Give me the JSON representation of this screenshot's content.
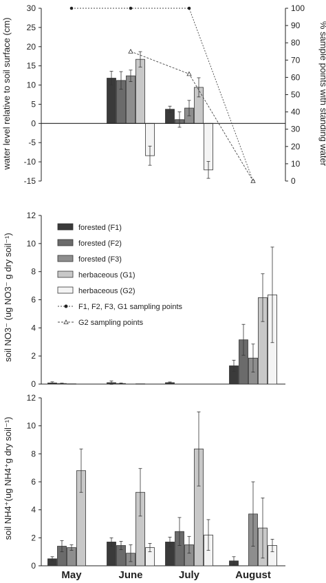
{
  "colors": {
    "F1": "#3a3a3a",
    "F2": "#6b6b6b",
    "F3": "#8e8e8e",
    "G1": "#c8c8c8",
    "G2": "#f4f4f4",
    "stroke": "#333333"
  },
  "months": [
    "May",
    "June",
    "July",
    "August"
  ],
  "chart_data": [
    {
      "type": "bar",
      "ylabel_left": "water level relative to soil surface (cm)",
      "ylabel_right": "% sample points with standing water",
      "ylim": [
        -15,
        30
      ],
      "yticks": [
        "-15",
        "-10",
        "-5",
        "0",
        "5",
        "10",
        "15",
        "20",
        "25",
        "30"
      ],
      "y2lim": [
        0,
        100
      ],
      "y2ticks": [
        "0",
        "10",
        "20",
        "30",
        "40",
        "50",
        "60",
        "70",
        "80",
        "90",
        "100"
      ],
      "categories": [
        "June",
        "July"
      ],
      "series": [
        {
          "key": "F1",
          "values": [
            11.8,
            3.7
          ],
          "errors": [
            1.8,
            0.8
          ]
        },
        {
          "key": "F2",
          "values": [
            11.2,
            1.0
          ],
          "errors": [
            2.3,
            2.0
          ]
        },
        {
          "key": "F3",
          "values": [
            12.4,
            4.0
          ],
          "errors": [
            1.5,
            2.0
          ]
        },
        {
          "key": "G1",
          "values": [
            16.7,
            9.4
          ],
          "errors": [
            2.0,
            2.5
          ]
        },
        {
          "key": "G2",
          "values": [
            -8.4,
            -12.1
          ],
          "errors": [
            2.5,
            2.2
          ]
        }
      ],
      "lines": [
        {
          "key": "F1, F2, F3, G1 sampling points",
          "x": [
            "May",
            "June",
            "July",
            "August"
          ],
          "values": [
            100,
            100,
            100,
            0
          ]
        },
        {
          "key": "G2 sampling points",
          "x": [
            "June",
            "July",
            "August"
          ],
          "values": [
            75,
            62,
            0
          ]
        }
      ]
    },
    {
      "type": "bar",
      "ylabel": "soil NO3⁻ (ug NO3⁻ g dry soil⁻¹)",
      "ylim": [
        0,
        12
      ],
      "yticks": [
        "0",
        "2",
        "4",
        "6",
        "8",
        "10",
        "12"
      ],
      "categories": [
        "May",
        "June",
        "July",
        "August"
      ],
      "series": [
        {
          "key": "F1",
          "values": [
            0.08,
            0.1,
            0.1,
            1.3
          ],
          "errors": [
            0.08,
            0.12,
            0.05,
            0.4
          ]
        },
        {
          "key": "F2",
          "values": [
            0.04,
            0.04,
            0.0,
            3.15
          ],
          "errors": [
            0.03,
            0.04,
            0.0,
            1.1
          ]
        },
        {
          "key": "F3",
          "values": [
            0.02,
            0.0,
            0.0,
            1.85
          ],
          "errors": [
            0.0,
            0.0,
            0.0,
            1.0
          ]
        },
        {
          "key": "G1",
          "values": [
            0.0,
            0.02,
            0.0,
            6.15
          ],
          "errors": [
            0.0,
            0.0,
            0.0,
            1.7
          ]
        },
        {
          "key": "G2",
          "values": [
            0.0,
            0.0,
            0.0,
            6.35
          ],
          "errors": [
            0.0,
            0.0,
            0.0,
            3.4
          ]
        }
      ]
    },
    {
      "type": "bar",
      "ylabel": "soil NH4⁺(ug NH4⁺g dry soil⁻¹)",
      "ylim": [
        0,
        12
      ],
      "yticks": [
        "0",
        "2",
        "4",
        "6",
        "8",
        "10",
        "12"
      ],
      "categories": [
        "May",
        "June",
        "July",
        "August"
      ],
      "series": [
        {
          "key": "F1",
          "values": [
            0.5,
            1.7,
            1.7,
            0.35
          ],
          "errors": [
            0.15,
            0.3,
            0.35,
            0.3
          ]
        },
        {
          "key": "F2",
          "values": [
            1.4,
            1.45,
            2.45,
            0.0
          ],
          "errors": [
            0.4,
            0.3,
            1.0,
            0.0
          ]
        },
        {
          "key": "F3",
          "values": [
            1.3,
            0.9,
            1.5,
            3.7
          ],
          "errors": [
            0.2,
            0.6,
            0.6,
            2.3
          ]
        },
        {
          "key": "G1",
          "values": [
            6.8,
            5.25,
            8.35,
            2.7
          ],
          "errors": [
            1.55,
            1.7,
            2.65,
            2.15
          ]
        },
        {
          "key": "G2",
          "values": [
            0.0,
            1.3,
            2.2,
            1.45
          ],
          "errors": [
            0.0,
            0.3,
            1.1,
            0.45
          ]
        }
      ]
    }
  ],
  "legend": {
    "items": [
      {
        "key": "F1",
        "label": "forested (F1)"
      },
      {
        "key": "F2",
        "label": "forested (F2)"
      },
      {
        "key": "F3",
        "label": "forested (F3)"
      },
      {
        "key": "G1",
        "label": "herbaceous (G1)"
      },
      {
        "key": "G2",
        "label": "herbaceous (G2)"
      }
    ],
    "line_items": [
      {
        "key": "F1G1",
        "label": "F1, F2, F3, G1 sampling points",
        "marker": "filled-circle"
      },
      {
        "key": "G2",
        "label": "G2 sampling points",
        "marker": "open-triangle"
      }
    ],
    "placement": "upper-left of middle panel"
  }
}
